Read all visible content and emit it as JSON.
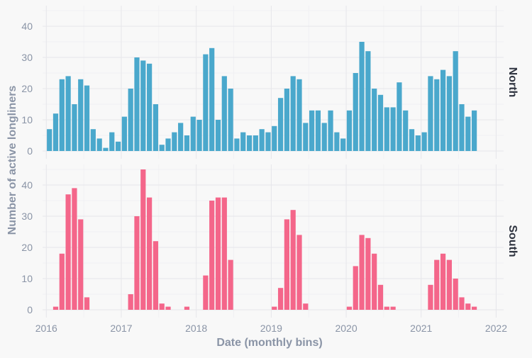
{
  "chart_data": {
    "type": "bar",
    "xlabel": "Date (monthly bins)",
    "ylabel": "Number of active longliners",
    "x_ticks": [
      "2016",
      "2017",
      "2018",
      "2019",
      "2020",
      "2021",
      "2022"
    ],
    "y_ticks": [
      "0",
      "10",
      "20",
      "30",
      "40"
    ],
    "ylim": [
      0,
      45
    ],
    "xlim": [
      2015.95,
      2022.1
    ],
    "series": [
      {
        "name": "North",
        "color": "#4aa8cc",
        "start": "2016-01",
        "values": [
          7,
          12,
          23,
          24,
          15,
          23,
          21,
          7,
          4,
          1,
          6,
          3,
          11,
          20,
          30,
          29,
          28,
          15,
          2,
          4,
          6,
          9,
          5,
          11,
          10,
          31,
          33,
          10,
          24,
          20,
          4,
          6,
          5,
          5,
          7,
          6,
          8,
          17,
          20,
          24,
          23,
          9,
          13,
          13,
          9,
          13,
          6,
          4,
          13,
          25,
          35,
          32,
          20,
          18,
          14,
          14,
          22,
          13,
          7,
          5,
          6,
          24,
          23,
          26,
          24,
          32,
          15,
          11,
          13
        ]
      },
      {
        "name": "South",
        "color": "#f4668a",
        "start": "2016-01",
        "values": [
          0,
          1,
          18,
          37,
          39,
          29,
          4,
          0,
          0,
          0,
          0,
          0,
          0,
          5,
          30,
          45,
          36,
          22,
          2,
          1,
          0,
          0,
          1,
          0,
          0,
          11,
          35,
          36,
          36,
          16,
          0,
          0,
          0,
          0,
          0,
          0,
          1,
          7,
          29,
          32,
          24,
          2,
          0,
          0,
          0,
          0,
          0,
          0,
          1,
          14,
          24,
          23,
          18,
          8,
          1,
          1,
          0,
          0,
          0,
          0,
          0,
          8,
          16,
          18,
          16,
          10,
          4,
          2,
          1
        ]
      }
    ]
  }
}
